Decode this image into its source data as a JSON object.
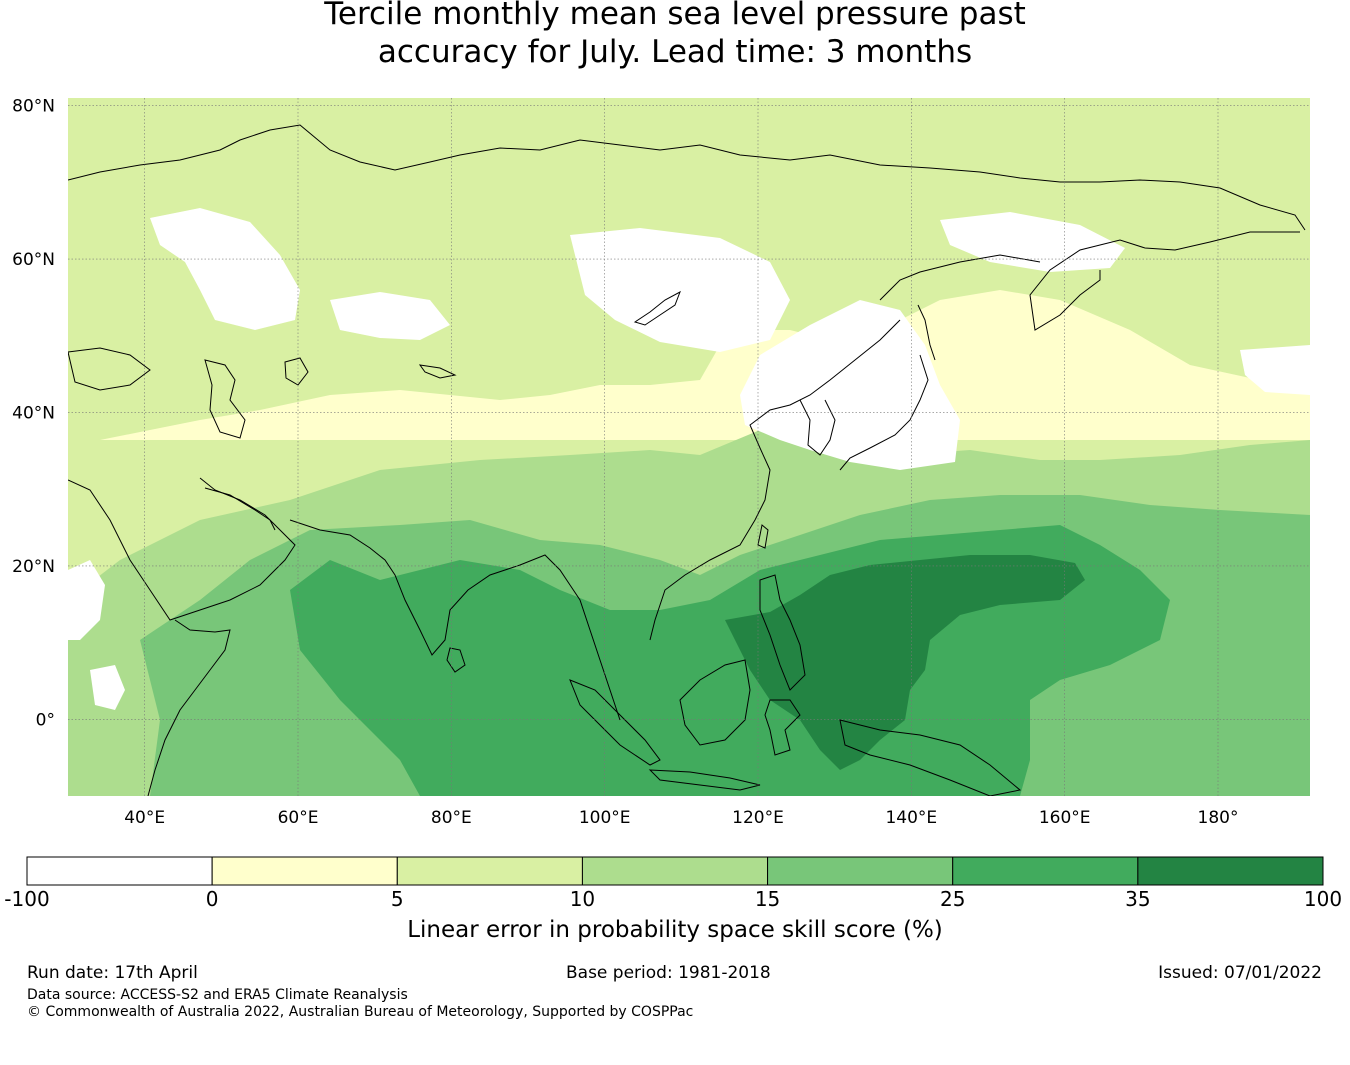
{
  "title": {
    "line1": "Tercile monthly mean sea level pressure past",
    "line2": "accuracy for July. Lead time: 3 months"
  },
  "map": {
    "region": "Asia, Maritime Continent and Western Pacific",
    "lon_labels": [
      "40°E",
      "60°E",
      "80°E",
      "100°E",
      "120°E",
      "140°E",
      "160°E",
      "180°"
    ],
    "lat_labels": [
      "80°N",
      "60°N",
      "40°N",
      "20°N",
      "0°"
    ],
    "lon_values": [
      40,
      60,
      80,
      100,
      120,
      140,
      160,
      180
    ],
    "lat_values": [
      80,
      60,
      40,
      20,
      0
    ],
    "lon_range": [
      30,
      192
    ],
    "lat_range": [
      -10,
      81
    ],
    "gridlines": true,
    "ocean_fill": "none",
    "coastline_color": "#000000"
  },
  "colorbar": {
    "boundaries": [
      "-100",
      "0",
      "5",
      "10",
      "15",
      "25",
      "35",
      "100"
    ],
    "colors": [
      "#ffffff",
      "#ffffcc",
      "#d9f0a3",
      "#addd8e",
      "#78c679",
      "#41ab5d",
      "#238443"
    ],
    "label": "Linear error in probability space skill score (%)"
  },
  "footer": {
    "run_date": "Run date: 17th April",
    "base_period": "Base period: 1981-2018",
    "issued": "Issued: 07/01/2022",
    "data_source": "Data source: ACCESS-S2 and ERA5 Climate Reanalysis",
    "copyright": "© Commonwealth of Australia 2022, Australian Bureau of Meteorology, Supported by COSPPac"
  }
}
